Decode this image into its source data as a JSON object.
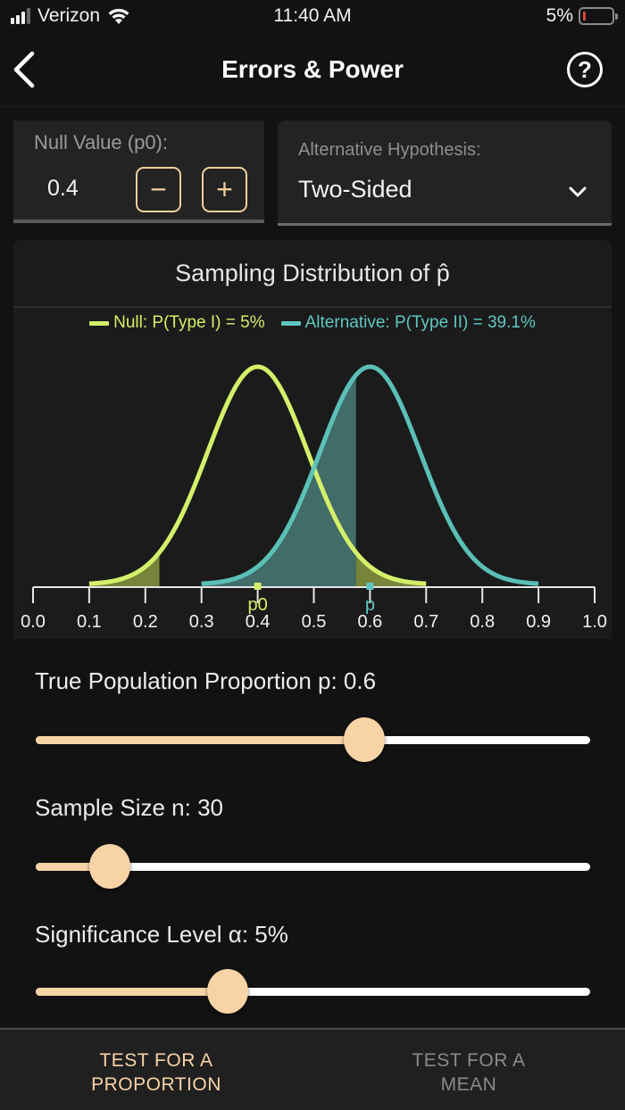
{
  "status_bar": {
    "carrier": "Verizon",
    "time": "11:40 AM",
    "battery_percent": "5%",
    "battery_color": "#e0443a"
  },
  "nav": {
    "back_icon": "chevron-left-icon",
    "title": "Errors & Power",
    "help_icon": "help-circle-icon",
    "help_glyph": "?"
  },
  "null_value": {
    "label": "Null Value (p0):",
    "value": "0.4",
    "decrement_label": "−",
    "increment_label": "+"
  },
  "alternative": {
    "label": "Alternative Hypothesis:",
    "selected": "Two-Sided",
    "dropdown_icon": "chevron-down-icon"
  },
  "chart": {
    "title": "Sampling Distribution of p̂",
    "legend": [
      {
        "label": "Null: P(Type I) = 5%",
        "color": "#d4f06a"
      },
      {
        "label": "Alternative: P(Type II) = 39.1%",
        "color": "#5ec8c0"
      }
    ]
  },
  "chart_data": {
    "type": "area",
    "title": "Sampling Distribution of p̂",
    "xlabel": "",
    "ylabel": "",
    "xlim": [
      0.0,
      1.0
    ],
    "x_ticks": [
      "0.0",
      "0.1",
      "0.2",
      "0.3",
      "0.4",
      "0.5",
      "0.6",
      "0.7",
      "0.8",
      "0.9",
      "1.0"
    ],
    "grid": false,
    "legend_position": "top",
    "markers": [
      {
        "label": "p0",
        "x": 0.4,
        "color": "#d4f06a"
      },
      {
        "label": "p",
        "x": 0.6,
        "color": "#5ec8c0"
      }
    ],
    "series": [
      {
        "name": "Null: P(Type I) = 5%",
        "distribution": "normal",
        "mean": 0.4,
        "sd": 0.0894,
        "x_range": [
          0.1,
          0.7
        ],
        "color": "#d4f06a",
        "shaded_regions": [
          [
            0.1,
            0.225
          ],
          [
            0.575,
            0.7
          ]
        ],
        "shade_color": "#7d8a3c"
      },
      {
        "name": "Alternative: P(Type II) = 39.1%",
        "distribution": "normal",
        "mean": 0.6,
        "sd": 0.0894,
        "x_range": [
          0.3,
          0.9
        ],
        "color": "#5ec8c0",
        "shaded_regions": [
          [
            0.3,
            0.575
          ]
        ],
        "shade_color": "#43716d"
      }
    ],
    "critical_values": [
      0.225,
      0.575
    ],
    "type_i_error": "5%",
    "type_ii_error": "39.1%"
  },
  "sliders": [
    {
      "label": "True Population Proportion p: 0.6",
      "fraction": 0.593
    },
    {
      "label": "Sample Size n: 30",
      "fraction": 0.134
    },
    {
      "label": "Significance Level α: 5%",
      "fraction": 0.346
    }
  ],
  "tabs": [
    {
      "label_line1": "TEST FOR A",
      "label_line2": "PROPORTION",
      "active": true
    },
    {
      "label_line1": "TEST FOR A",
      "label_line2": "MEAN",
      "active": false
    }
  ],
  "colors": {
    "accent": "#f7d3a6",
    "null_curve": "#d4f06a",
    "alt_curve": "#5ec8c0",
    "background": "#121212",
    "card": "#1b1b1b"
  }
}
